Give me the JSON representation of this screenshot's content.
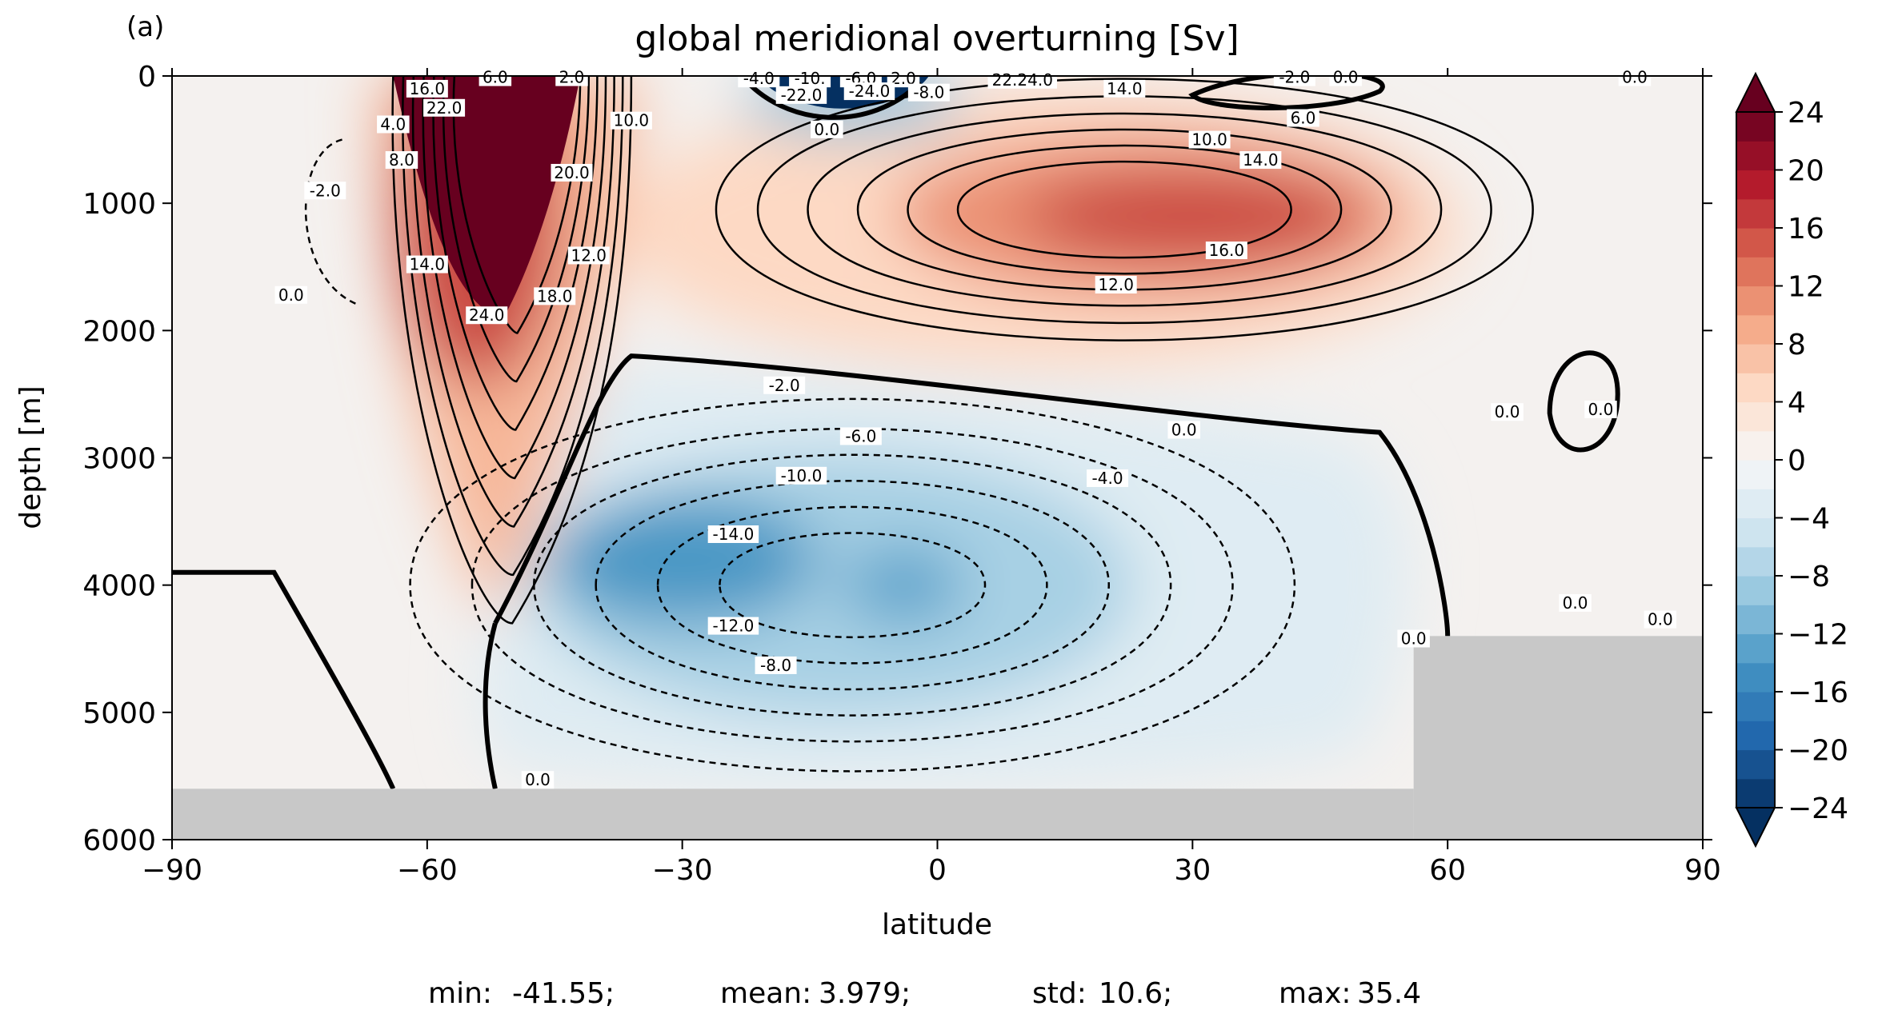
{
  "chart_data": {
    "type": "contour",
    "panel_label": "(a)",
    "title": "global meridional overturning [Sv]",
    "xlabel": "latitude",
    "ylabel": "depth [m]",
    "xlim": [
      -90,
      90
    ],
    "ylim": [
      6000,
      0
    ],
    "xticks": [
      -90,
      -60,
      -30,
      0,
      30,
      60,
      90
    ],
    "xtick_labels": [
      "−90",
      "−60",
      "−30",
      "0",
      "30",
      "60",
      "90"
    ],
    "yticks": [
      0,
      1000,
      2000,
      3000,
      4000,
      5000,
      6000
    ],
    "ytick_labels": [
      "0",
      "1000",
      "2000",
      "3000",
      "4000",
      "5000",
      "6000"
    ],
    "colorbar": {
      "levels_min": -24,
      "levels_max": 24,
      "levels_step": 2,
      "ticks": [
        24,
        20,
        16,
        12,
        8,
        4,
        0,
        -4,
        -8,
        -12,
        -16,
        -20,
        -24
      ],
      "tick_labels": [
        "24",
        "20",
        "16",
        "12",
        "8",
        "4",
        "0",
        "−4",
        "−8",
        "−12",
        "−16",
        "−20",
        "−24"
      ],
      "colormap": "RdBu_r",
      "extend": "both"
    },
    "cells": [
      {
        "name": "southern-ocean-clockwise-cell",
        "lat": -55,
        "depth": 500,
        "value": 24
      },
      {
        "name": "upper-overturning-cell",
        "lat": 30,
        "depth": 1100,
        "value": 16
      },
      {
        "name": "abyssal-counterclockwise-cell",
        "lat": -30,
        "depth": 3800,
        "value": -14
      },
      {
        "name": "equatorial-surface-cell",
        "lat": -10,
        "depth": 200,
        "value": -24
      }
    ],
    "contour_labels": [
      {
        "text": "24.0",
        "lat": -53,
        "depth": 1880
      },
      {
        "text": "18.0",
        "lat": -45,
        "depth": 1730
      },
      {
        "text": "12.0",
        "lat": -41,
        "depth": 1410
      },
      {
        "text": "20.0",
        "lat": -43,
        "depth": 760
      },
      {
        "text": "14.0",
        "lat": -60,
        "depth": 1480
      },
      {
        "text": "22.0",
        "lat": -58,
        "depth": 250
      },
      {
        "text": "16.0",
        "lat": -60,
        "depth": 100
      },
      {
        "text": "8.0",
        "lat": -63,
        "depth": 660
      },
      {
        "text": "4.0",
        "lat": -64,
        "depth": 380
      },
      {
        "text": "6.0",
        "lat": -52,
        "depth": 10
      },
      {
        "text": "2.0",
        "lat": -43,
        "depth": 10
      },
      {
        "text": "10.0",
        "lat": -36,
        "depth": 350
      },
      {
        "text": "-2.0",
        "lat": -72,
        "depth": 900
      },
      {
        "text": "0.0",
        "lat": -76,
        "depth": 1720
      },
      {
        "text": "-10.",
        "lat": -15,
        "depth": 20
      },
      {
        "text": "-6.0",
        "lat": -9,
        "depth": 20
      },
      {
        "text": "2.0",
        "lat": -4,
        "depth": 20
      },
      {
        "text": "-4.0",
        "lat": -21,
        "depth": 20
      },
      {
        "text": "-22.0",
        "lat": -16,
        "depth": 150
      },
      {
        "text": "-24.0",
        "lat": -8,
        "depth": 120
      },
      {
        "text": "-8.0",
        "lat": -1,
        "depth": 130
      },
      {
        "text": "0.0",
        "lat": -13,
        "depth": 420
      },
      {
        "text": "22.24.0",
        "lat": 10,
        "depth": 30
      },
      {
        "text": "14.0",
        "lat": 22,
        "depth": 100
      },
      {
        "text": "-2.0",
        "lat": 42,
        "depth": 10
      },
      {
        "text": "0.0",
        "lat": 48,
        "depth": 10
      },
      {
        "text": "6.0",
        "lat": 43,
        "depth": 330
      },
      {
        "text": "10.0",
        "lat": 32,
        "depth": 500
      },
      {
        "text": "14.0",
        "lat": 38,
        "depth": 660
      },
      {
        "text": "16.0",
        "lat": 34,
        "depth": 1370
      },
      {
        "text": "12.0",
        "lat": 21,
        "depth": 1640
      },
      {
        "text": "0.0",
        "lat": 82,
        "depth": 10
      },
      {
        "text": "-2.0",
        "lat": -18,
        "depth": 2430
      },
      {
        "text": "-6.0",
        "lat": -9,
        "depth": 2830
      },
      {
        "text": "-10.0",
        "lat": -16,
        "depth": 3140
      },
      {
        "text": "-4.0",
        "lat": 20,
        "depth": 3160
      },
      {
        "text": "-14.0",
        "lat": -24,
        "depth": 3600
      },
      {
        "text": "-12.0",
        "lat": -24,
        "depth": 4320
      },
      {
        "text": "-8.0",
        "lat": -19,
        "depth": 4630
      },
      {
        "text": "0.0",
        "lat": 29,
        "depth": 2780
      },
      {
        "text": "0.0",
        "lat": 67,
        "depth": 2640
      },
      {
        "text": "0.0",
        "lat": 78,
        "depth": 2620
      },
      {
        "text": "0.0",
        "lat": 56,
        "depth": 4420
      },
      {
        "text": "0.0",
        "lat": 75,
        "depth": 4140
      },
      {
        "text": "0.0",
        "lat": 85,
        "depth": 4270
      },
      {
        "text": "0.0",
        "lat": -47,
        "depth": 5530
      }
    ],
    "bottom_topography": [
      {
        "lat_range": [
          -90,
          56
        ],
        "depth": 5600
      },
      {
        "lat_range": [
          56,
          90
        ],
        "depth": 4400
      }
    ],
    "statistics": {
      "min_label": "min:",
      "min": "-41.55;",
      "mean_label": "mean:",
      "mean": "3.979;",
      "std_label": "std:",
      "std": "10.6;",
      "max_label": "max:",
      "max": "35.4"
    },
    "colors": {
      "land": "#c8c8c8",
      "zero_contour": "#000000",
      "max_positive": "#67001f",
      "max_negative": "#053061"
    }
  }
}
